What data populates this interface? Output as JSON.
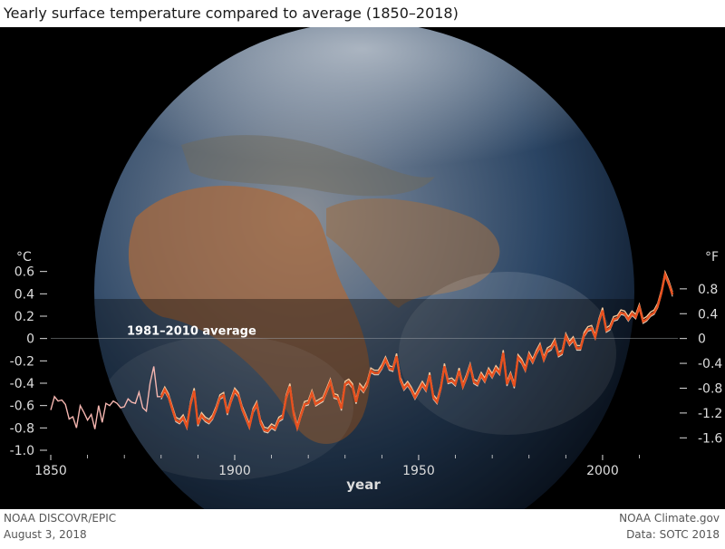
{
  "title": "Yearly surface temperature compared to average (1850–2018)",
  "footer": {
    "left_line1": "NOAA DISCOVR/EPIC",
    "left_line2": "August 3, 2018",
    "right_line1": "NOAA Climate.gov",
    "right_line2": "Data: SOTC 2018"
  },
  "colors": {
    "background": "#000000",
    "series_early": "#f5b6b0",
    "series_main": "#e8501e",
    "series_highlight": "#f6c79a",
    "series_light": "#f2ddc8",
    "axis_text": "#dddddd",
    "baseline": "#9aa0a6"
  },
  "chart_data": {
    "type": "line",
    "title": "Yearly surface temperature compared to average (1850–2018)",
    "xlabel": "year",
    "ylabel_left": "°C",
    "ylabel_right": "°F",
    "xlim": [
      1850,
      2018
    ],
    "ylim": [
      -1.0,
      0.8
    ],
    "x_ticks": [
      1850,
      1900,
      1950,
      2000
    ],
    "y_ticks_left": [
      -1.0,
      -0.8,
      -0.6,
      -0.4,
      -0.2,
      0,
      0.2,
      0.4,
      0.6
    ],
    "y_tick_labels_left": [
      "-1.0",
      "-0.8",
      "-0.6",
      "-0.4",
      "-0.2",
      "0",
      "0.2",
      "0.4",
      "0.6"
    ],
    "y_ticks_right_f": [
      -1.6,
      -1.2,
      -0.8,
      -0.4,
      0,
      0.4,
      0.8
    ],
    "y_tick_labels_right": [
      "-1.6",
      "-1.2",
      "-0.8",
      "-0.4",
      "0",
      "0.4",
      "0.8"
    ],
    "baseline_label": "1981–2010 average",
    "grid": false,
    "background_image": "Earth globe photographed from space (Europe, Africa, Middle East)",
    "series": [
      {
        "x_start": 1850,
        "values": [
          -0.64,
          -0.52,
          -0.56,
          -0.55,
          -0.59,
          -0.72,
          -0.7,
          -0.8,
          -0.6,
          -0.66,
          -0.73,
          -0.68,
          -0.81,
          -0.6,
          -0.75,
          -0.58,
          -0.6,
          -0.56,
          -0.58,
          -0.62,
          -0.61,
          -0.54,
          -0.57,
          -0.58,
          -0.48,
          -0.62,
          -0.65,
          -0.4,
          -0.25,
          -0.52,
          -0.52
        ]
      },
      {
        "x_start": 1880,
        "values": [
          -0.52,
          -0.45,
          -0.51,
          -0.62,
          -0.72,
          -0.74,
          -0.7,
          -0.78,
          -0.58,
          -0.46,
          -0.76,
          -0.68,
          -0.72,
          -0.74,
          -0.7,
          -0.62,
          -0.52,
          -0.5,
          -0.66,
          -0.55,
          -0.46,
          -0.5,
          -0.62,
          -0.7,
          -0.78,
          -0.64,
          -0.58,
          -0.74,
          -0.81,
          -0.82,
          -0.78,
          -0.8,
          -0.72,
          -0.7,
          -0.52,
          -0.42,
          -0.66,
          -0.79,
          -0.68,
          -0.58,
          -0.57,
          -0.48,
          -0.58,
          -0.56,
          -0.54,
          -0.46,
          -0.38,
          -0.51,
          -0.52,
          -0.62,
          -0.4,
          -0.38,
          -0.42,
          -0.56,
          -0.42,
          -0.46,
          -0.4,
          -0.28,
          -0.3,
          -0.3,
          -0.25,
          -0.18,
          -0.26,
          -0.27,
          -0.15,
          -0.36,
          -0.44,
          -0.4,
          -0.45,
          -0.52,
          -0.46,
          -0.4,
          -0.45,
          -0.32,
          -0.52,
          -0.56,
          -0.44,
          -0.24,
          -0.38,
          -0.37,
          -0.4,
          -0.28,
          -0.42,
          -0.34,
          -0.24,
          -0.38,
          -0.4,
          -0.32,
          -0.37,
          -0.28,
          -0.33,
          -0.26,
          -0.3,
          -0.12,
          -0.4,
          -0.32,
          -0.42,
          -0.16,
          -0.2,
          -0.27,
          -0.14,
          -0.2,
          -0.12,
          -0.06,
          -0.18,
          -0.1,
          -0.08,
          -0.02,
          -0.14,
          -0.12,
          0.03,
          -0.04,
          0.0,
          -0.08,
          -0.08,
          0.04,
          0.09,
          0.1,
          0.02,
          0.16,
          0.26,
          0.08,
          0.1,
          0.18,
          0.19,
          0.24,
          0.23,
          0.18,
          0.23,
          0.2,
          0.29,
          0.16,
          0.18,
          0.22,
          0.24,
          0.3,
          0.42,
          0.58,
          0.5,
          0.4
        ]
      }
    ]
  }
}
